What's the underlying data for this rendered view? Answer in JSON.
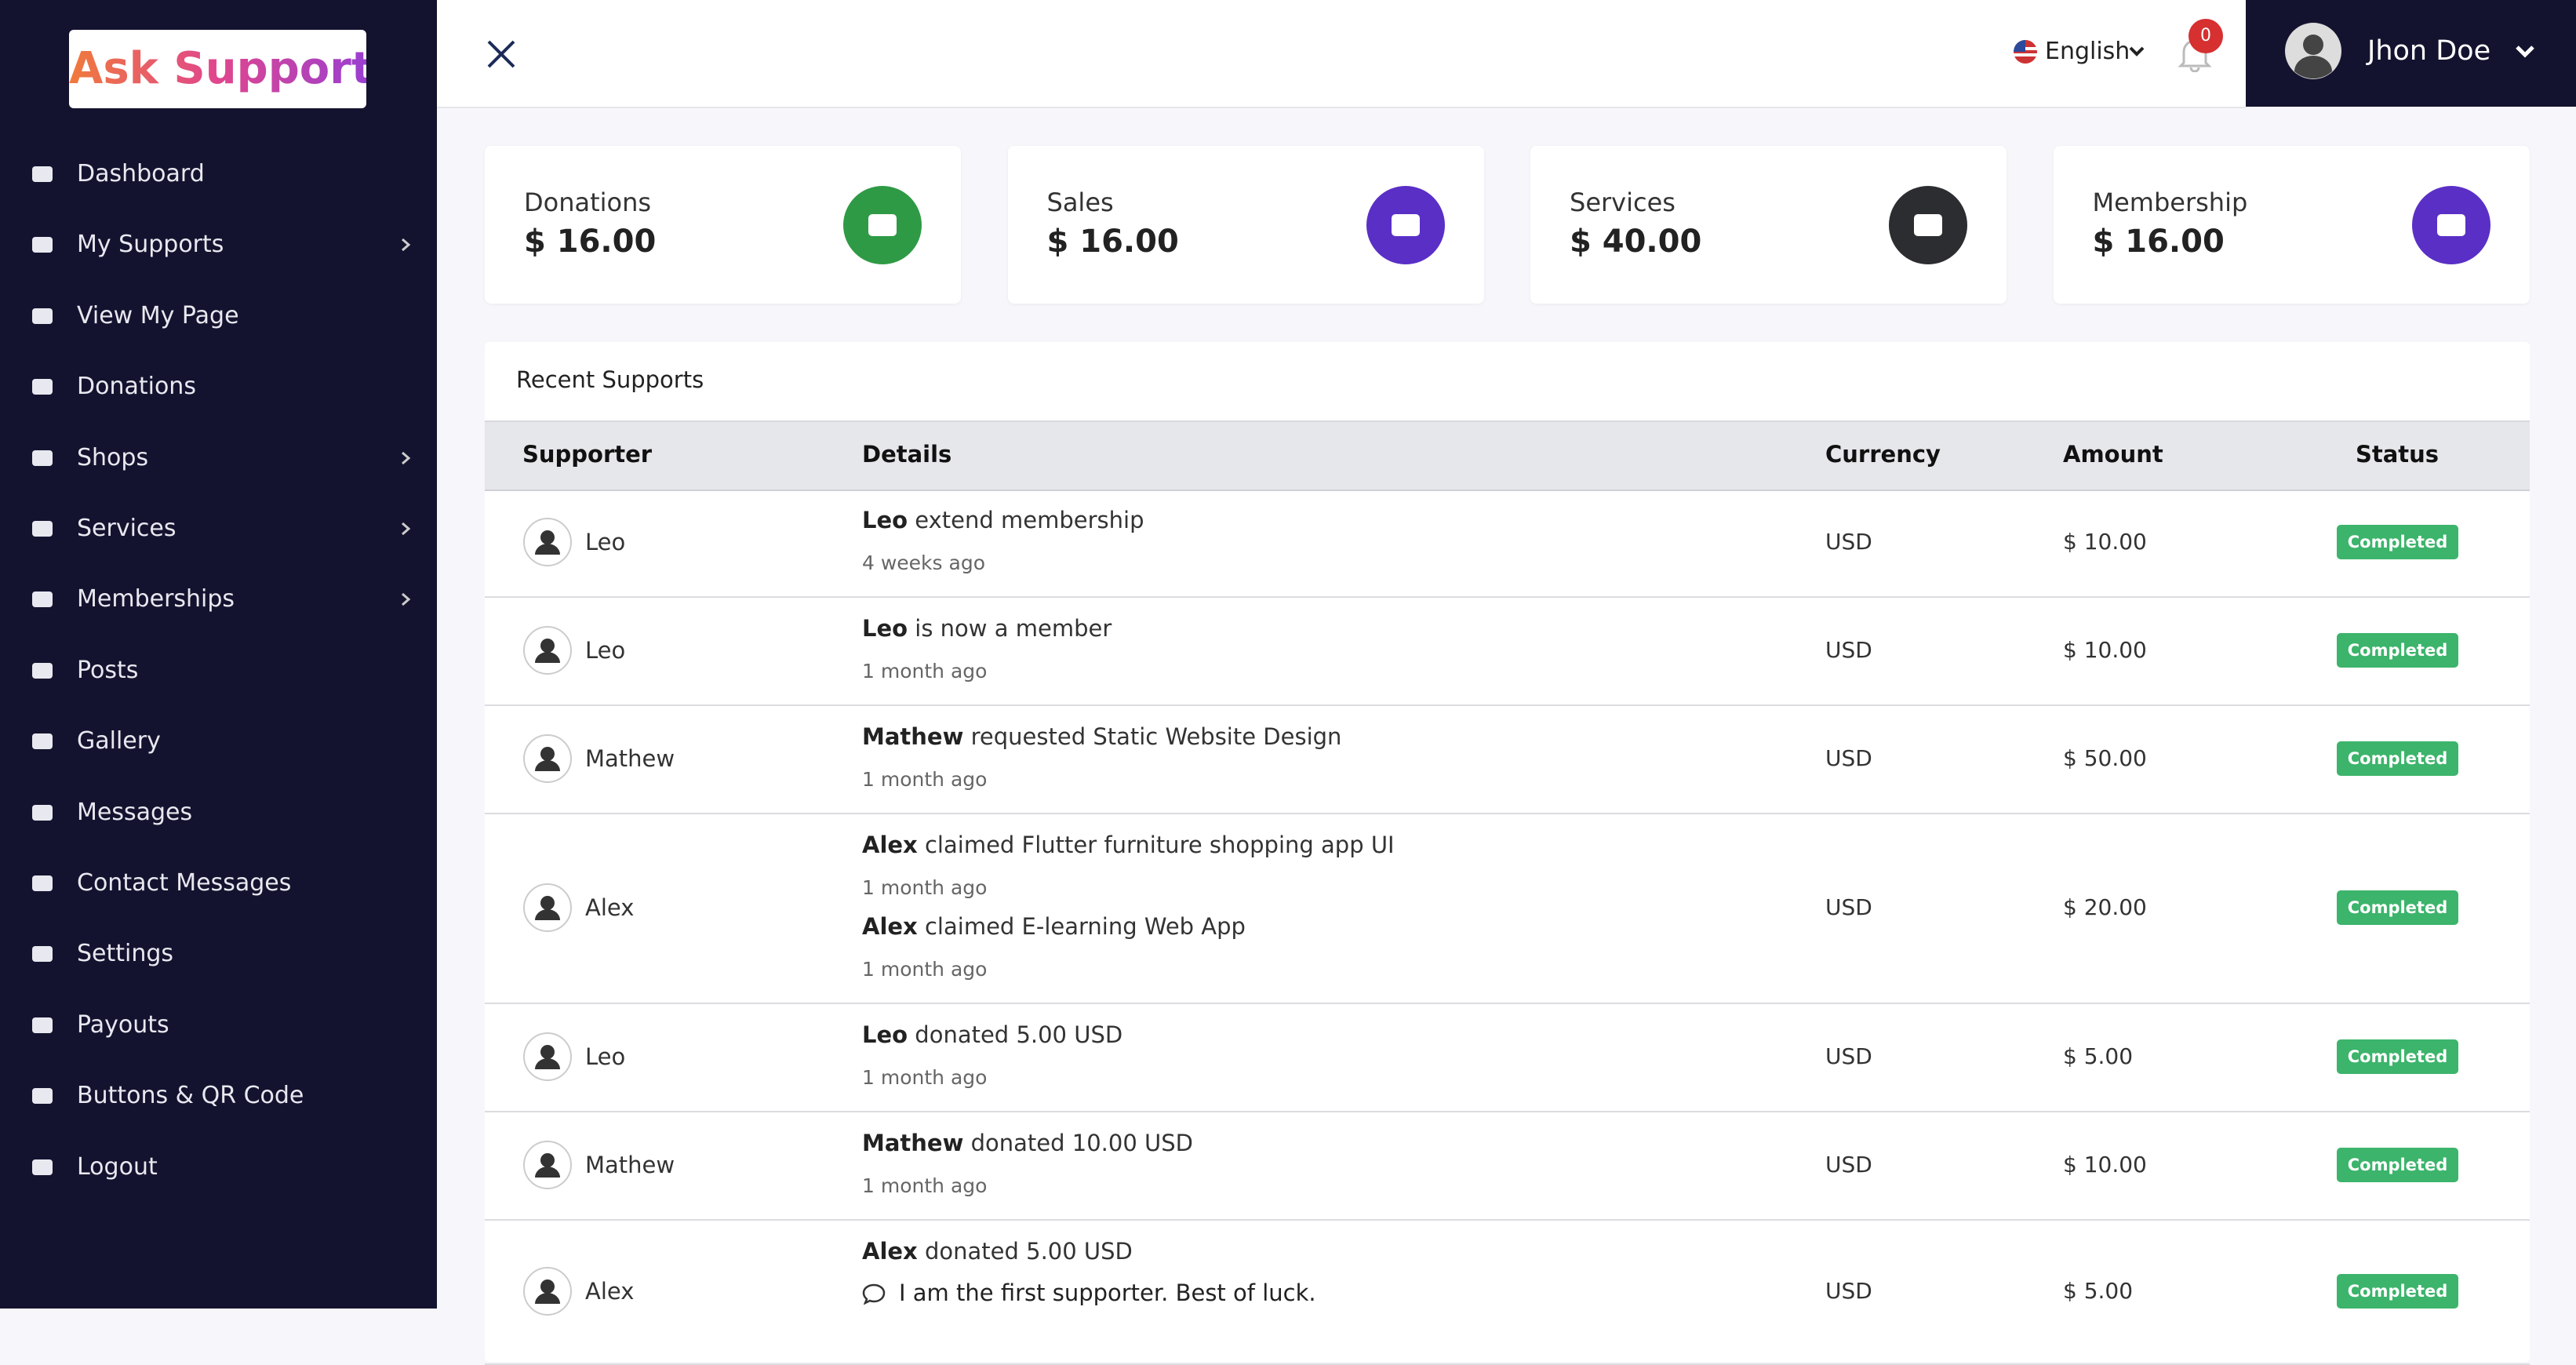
{
  "sidebar": {
    "logo": "Ask Support",
    "menu": [
      {
        "label": "Dashboard"
      },
      {
        "label": "My Supports",
        "submenu": true
      },
      {
        "label": "View My Page"
      },
      {
        "label": "Donations"
      },
      {
        "label": "Shops",
        "submenu": true
      },
      {
        "label": "Services",
        "submenu": true
      },
      {
        "label": "Memberships",
        "submenu": true
      },
      {
        "label": "Posts"
      },
      {
        "label": "Gallery"
      },
      {
        "label": "Messages"
      },
      {
        "label": "Contact Messages"
      },
      {
        "label": "Settings"
      },
      {
        "label": "Payouts"
      },
      {
        "label": "Buttons & QR Code"
      },
      {
        "label": "Logout"
      }
    ]
  },
  "header": {
    "language": "English",
    "notifications": "0",
    "user": "Jhon Doe"
  },
  "cards": [
    {
      "label": "Donations",
      "value": "$ 16.00",
      "color": "#2f9a45"
    },
    {
      "label": "Sales",
      "value": "$ 16.00",
      "color": "#5a2fc6"
    },
    {
      "label": "Services",
      "value": "$ 40.00",
      "color": "#2b2d31"
    },
    {
      "label": "Membership",
      "value": "$ 16.00",
      "color": "#5a2fc6"
    }
  ],
  "table": {
    "title": "Recent Supports",
    "columns": [
      "Supporter",
      "Details",
      "Currency",
      "Amount",
      "Status"
    ],
    "rows": [
      {
        "supporter": "Leo",
        "details": [
          {
            "actor": "Leo",
            "text": "extend membership",
            "time": "4 weeks ago"
          }
        ],
        "currency": "USD",
        "amount": "$ 10.00",
        "status": "Completed"
      },
      {
        "supporter": "Leo",
        "details": [
          {
            "actor": "Leo",
            "text": "is now a member",
            "time": "1 month ago"
          }
        ],
        "currency": "USD",
        "amount": "$ 10.00",
        "status": "Completed"
      },
      {
        "supporter": "Mathew",
        "details": [
          {
            "actor": "Mathew",
            "text": "requested Static Website Design",
            "time": "1 month ago"
          }
        ],
        "currency": "USD",
        "amount": "$ 50.00",
        "status": "Completed"
      },
      {
        "supporter": "Alex",
        "details": [
          {
            "actor": "Alex",
            "text": "claimed Flutter furniture shopping app UI",
            "time": "1 month ago"
          },
          {
            "actor": "Alex",
            "text": "claimed E-learning Web App",
            "time": "1 month ago"
          }
        ],
        "currency": "USD",
        "amount": "$ 20.00",
        "status": "Completed"
      },
      {
        "supporter": "Leo",
        "details": [
          {
            "actor": "Leo",
            "text": "donated 5.00 USD",
            "time": "1 month ago"
          }
        ],
        "currency": "USD",
        "amount": "$ 5.00",
        "status": "Completed"
      },
      {
        "supporter": "Mathew",
        "details": [
          {
            "actor": "Mathew",
            "text": "donated 10.00 USD",
            "time": "1 month ago"
          }
        ],
        "currency": "USD",
        "amount": "$ 10.00",
        "status": "Completed"
      },
      {
        "supporter": "Alex",
        "details": [
          {
            "actor": "Alex",
            "text": "donated 5.00 USD",
            "message": "I am the first supporter. Best of luck."
          }
        ],
        "currency": "USD",
        "amount": "$ 5.00",
        "status": "Completed"
      }
    ]
  }
}
